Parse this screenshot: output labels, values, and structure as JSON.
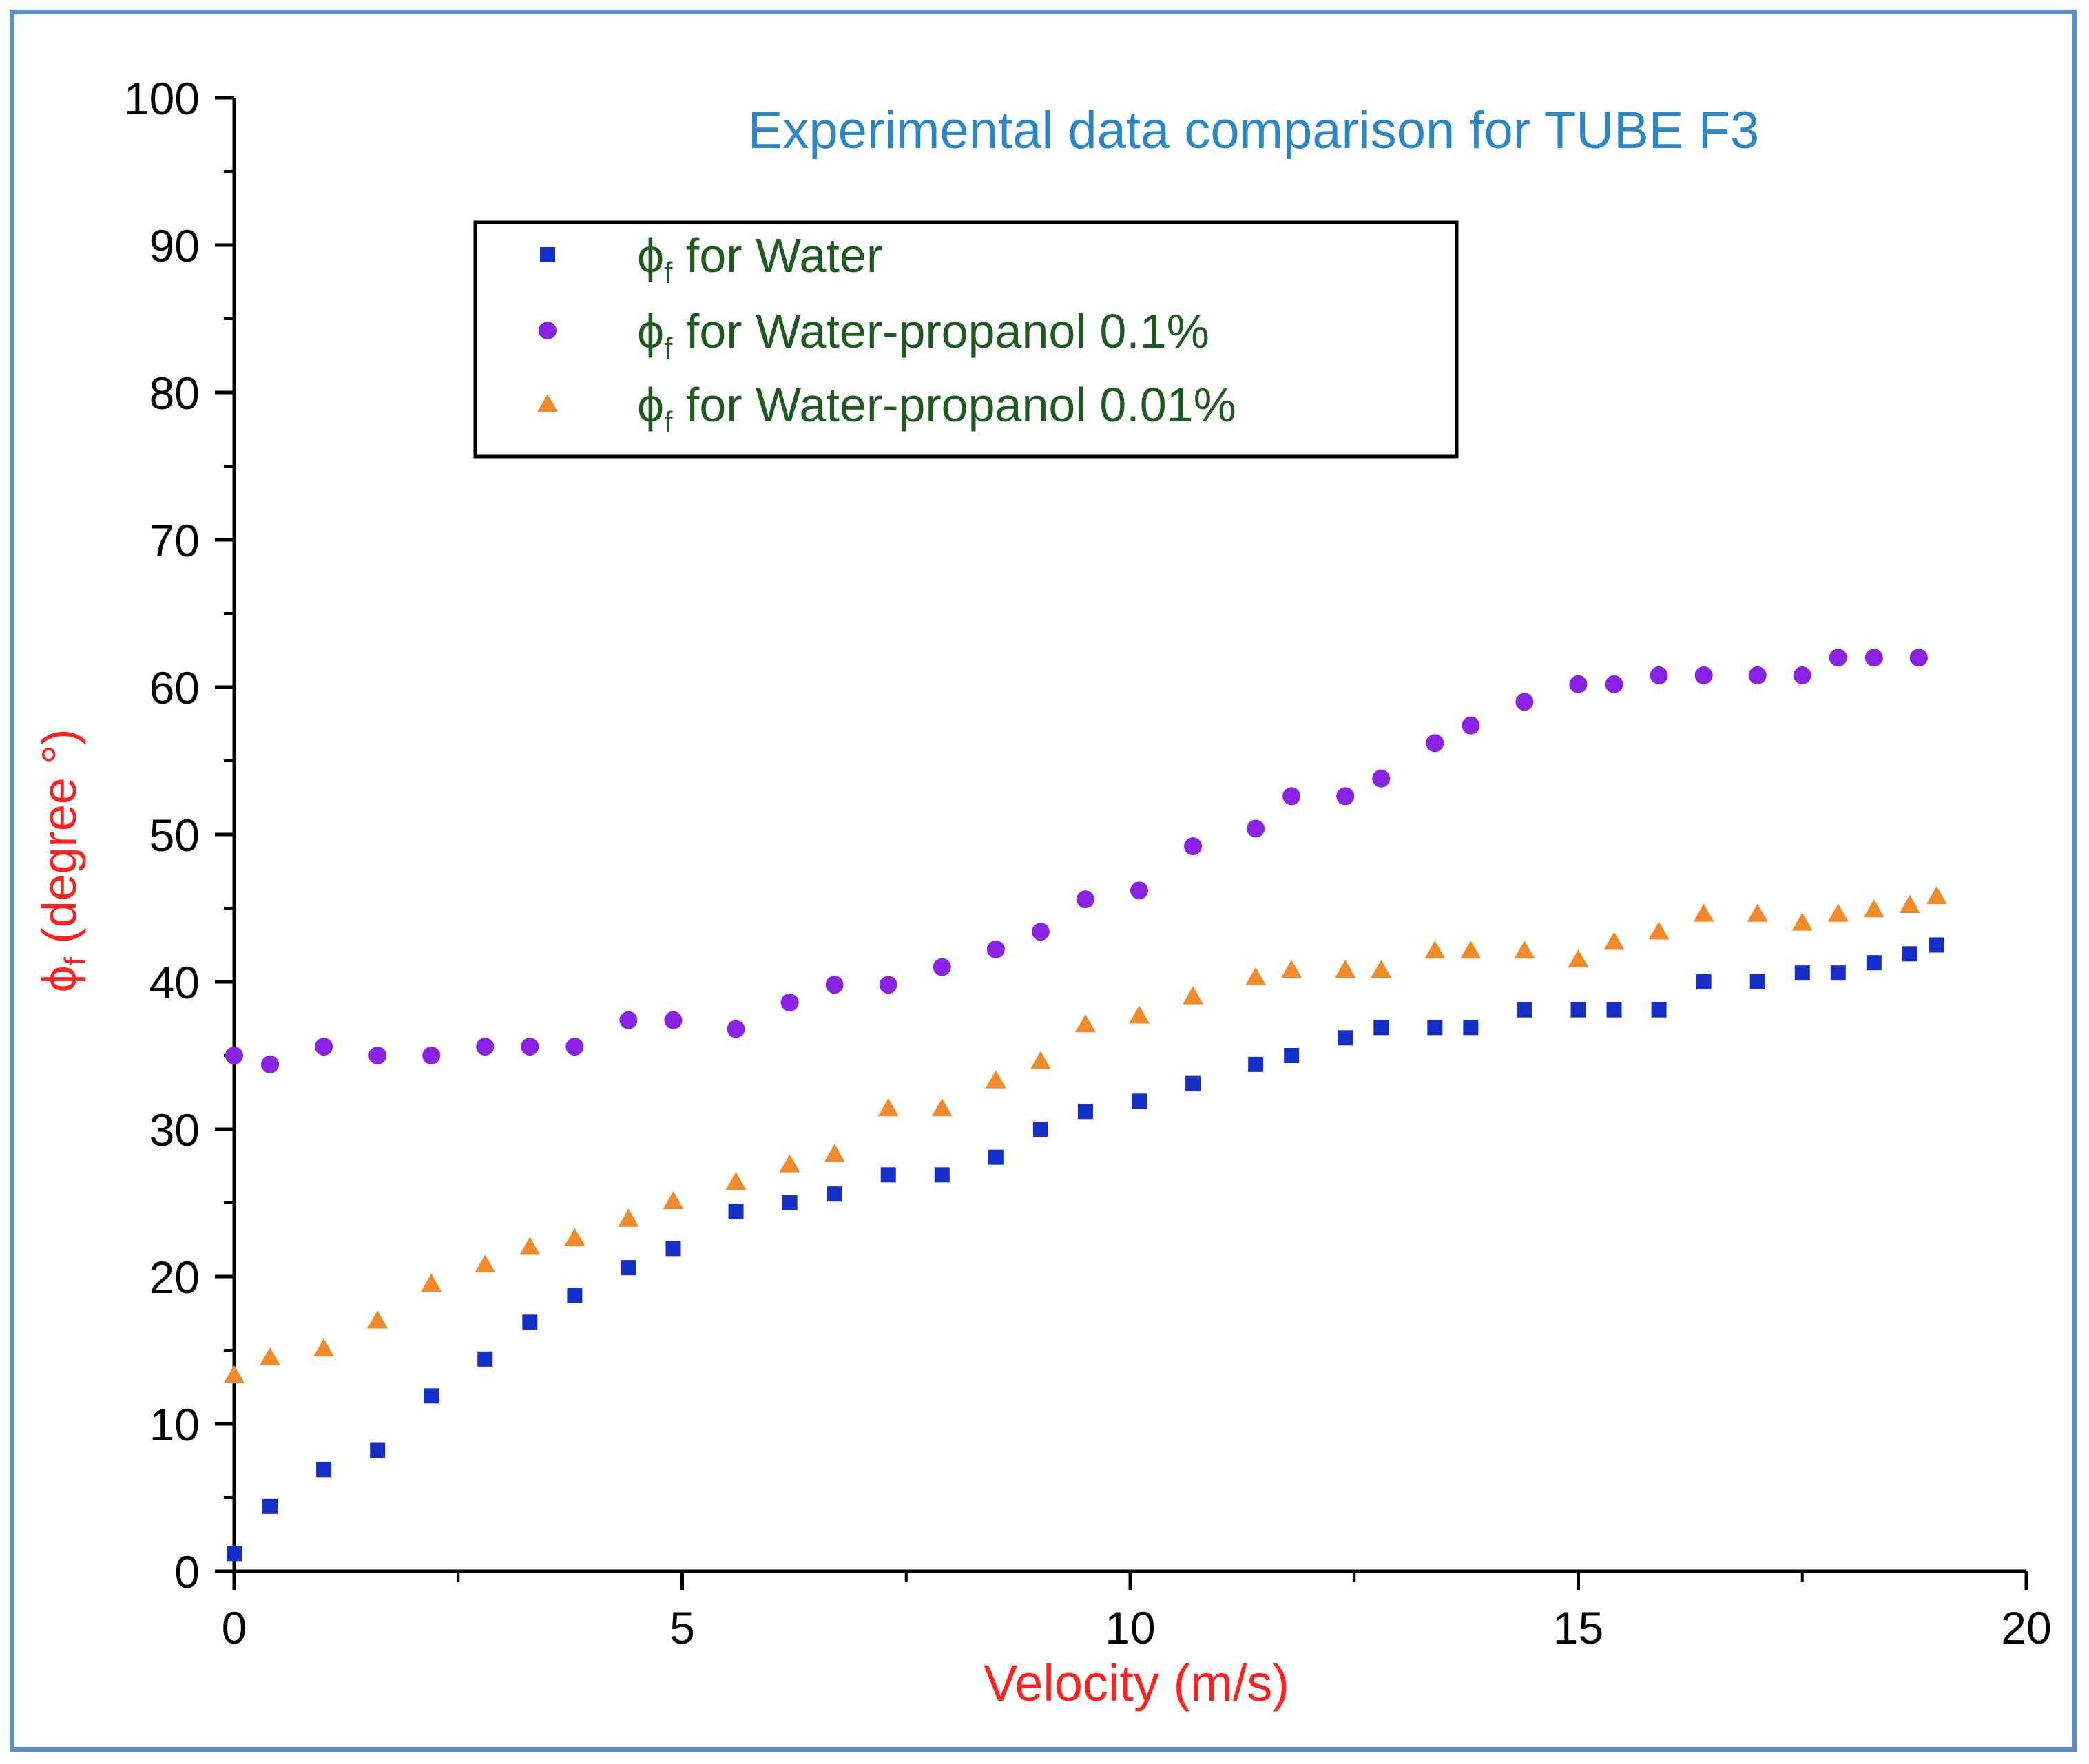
{
  "chart_data": {
    "type": "scatter",
    "title": "Experimental data comparison for TUBE F3",
    "xlabel": "Velocity (m/s)",
    "ylabel": "ϕf (degree °)",
    "ylabel_symbol": "ϕ",
    "ylabel_sub": "f",
    "ylabel_rest": " (degree °)",
    "xlim": [
      0,
      20
    ],
    "ylim": [
      0,
      100
    ],
    "xticks": [
      "0",
      "5",
      "10",
      "15",
      "20"
    ],
    "yticks": [
      "0",
      "10",
      "20",
      "30",
      "40",
      "50",
      "60",
      "70",
      "80",
      "90",
      "100"
    ],
    "legend_position": "top-center",
    "series": [
      {
        "name": "ϕf for Water",
        "symbol": "ϕ",
        "sub": "f",
        "label": "for Water",
        "marker": "square",
        "color": "#1530c8",
        "points": [
          [
            0.0,
            1.2
          ],
          [
            0.4,
            4.4
          ],
          [
            1.0,
            6.9
          ],
          [
            1.6,
            8.2
          ],
          [
            2.2,
            11.9
          ],
          [
            2.8,
            14.4
          ],
          [
            3.3,
            16.9
          ],
          [
            3.8,
            18.7
          ],
          [
            4.4,
            20.6
          ],
          [
            4.9,
            21.9
          ],
          [
            5.6,
            24.4
          ],
          [
            6.2,
            25.0
          ],
          [
            6.7,
            25.6
          ],
          [
            7.3,
            26.9
          ],
          [
            7.9,
            26.9
          ],
          [
            8.5,
            28.1
          ],
          [
            9.0,
            30.0
          ],
          [
            9.5,
            31.2
          ],
          [
            10.1,
            31.9
          ],
          [
            10.7,
            33.1
          ],
          [
            11.4,
            34.4
          ],
          [
            11.8,
            35.0
          ],
          [
            12.4,
            36.2
          ],
          [
            12.8,
            36.9
          ],
          [
            13.4,
            36.9
          ],
          [
            13.8,
            36.9
          ],
          [
            14.4,
            38.1
          ],
          [
            15.0,
            38.1
          ],
          [
            15.4,
            38.1
          ],
          [
            15.9,
            38.1
          ],
          [
            16.4,
            40.0
          ],
          [
            17.0,
            40.0
          ],
          [
            17.5,
            40.6
          ],
          [
            17.9,
            40.6
          ],
          [
            18.3,
            41.3
          ],
          [
            18.7,
            41.9
          ],
          [
            19.0,
            42.5
          ]
        ]
      },
      {
        "name": "ϕf for Water-propanol 0.1%",
        "symbol": "ϕ",
        "sub": "f",
        "label": "for Water-propanol 0.1%",
        "marker": "circle",
        "color": "#8a22e6",
        "points": [
          [
            0.0,
            35.0
          ],
          [
            0.4,
            34.4
          ],
          [
            1.0,
            35.6
          ],
          [
            1.6,
            35.0
          ],
          [
            2.2,
            35.0
          ],
          [
            2.8,
            35.6
          ],
          [
            3.3,
            35.6
          ],
          [
            3.8,
            35.6
          ],
          [
            4.4,
            37.4
          ],
          [
            4.9,
            37.4
          ],
          [
            5.6,
            36.8
          ],
          [
            6.2,
            38.6
          ],
          [
            6.7,
            39.8
          ],
          [
            7.3,
            39.8
          ],
          [
            7.9,
            41.0
          ],
          [
            8.5,
            42.2
          ],
          [
            9.0,
            43.4
          ],
          [
            9.5,
            45.6
          ],
          [
            10.1,
            46.2
          ],
          [
            10.7,
            49.2
          ],
          [
            11.4,
            50.4
          ],
          [
            11.8,
            52.6
          ],
          [
            12.4,
            52.6
          ],
          [
            12.8,
            53.8
          ],
          [
            13.4,
            56.2
          ],
          [
            13.8,
            57.4
          ],
          [
            14.4,
            59.0
          ],
          [
            15.0,
            60.2
          ],
          [
            15.4,
            60.2
          ],
          [
            15.9,
            60.8
          ],
          [
            16.4,
            60.8
          ],
          [
            17.0,
            60.8
          ],
          [
            17.5,
            60.8
          ],
          [
            17.9,
            62.0
          ],
          [
            18.3,
            62.0
          ],
          [
            18.8,
            62.0
          ]
        ]
      },
      {
        "name": "ϕf for Water-propanol 0.01%",
        "symbol": "ϕ",
        "sub": "f",
        "label": "for Water-propanol 0.01%",
        "marker": "triangle",
        "color": "#f08a2a",
        "points": [
          [
            0.0,
            13.3
          ],
          [
            0.4,
            14.5
          ],
          [
            1.0,
            15.1
          ],
          [
            1.6,
            17.0
          ],
          [
            2.2,
            19.5
          ],
          [
            2.8,
            20.8
          ],
          [
            3.3,
            22.0
          ],
          [
            3.8,
            22.6
          ],
          [
            4.4,
            23.9
          ],
          [
            4.9,
            25.1
          ],
          [
            5.6,
            26.4
          ],
          [
            6.2,
            27.6
          ],
          [
            6.7,
            28.3
          ],
          [
            7.3,
            31.4
          ],
          [
            7.9,
            31.4
          ],
          [
            8.5,
            33.3
          ],
          [
            9.0,
            34.6
          ],
          [
            9.5,
            37.1
          ],
          [
            10.1,
            37.7
          ],
          [
            10.7,
            39.0
          ],
          [
            11.4,
            40.3
          ],
          [
            11.8,
            40.8
          ],
          [
            12.4,
            40.8
          ],
          [
            12.8,
            40.8
          ],
          [
            13.4,
            42.1
          ],
          [
            13.8,
            42.1
          ],
          [
            14.4,
            42.1
          ],
          [
            15.0,
            41.5
          ],
          [
            15.4,
            42.7
          ],
          [
            15.9,
            43.4
          ],
          [
            16.4,
            44.6
          ],
          [
            17.0,
            44.6
          ],
          [
            17.5,
            44.0
          ],
          [
            17.9,
            44.6
          ],
          [
            18.3,
            44.9
          ],
          [
            18.7,
            45.2
          ],
          [
            19.0,
            45.8
          ]
        ]
      }
    ]
  },
  "colors": {
    "frame": "#5b8fc7",
    "title": "#2a86c6",
    "axis_label": "#ff2020",
    "legend_text": "#1e5a20",
    "axis": "#000000"
  }
}
